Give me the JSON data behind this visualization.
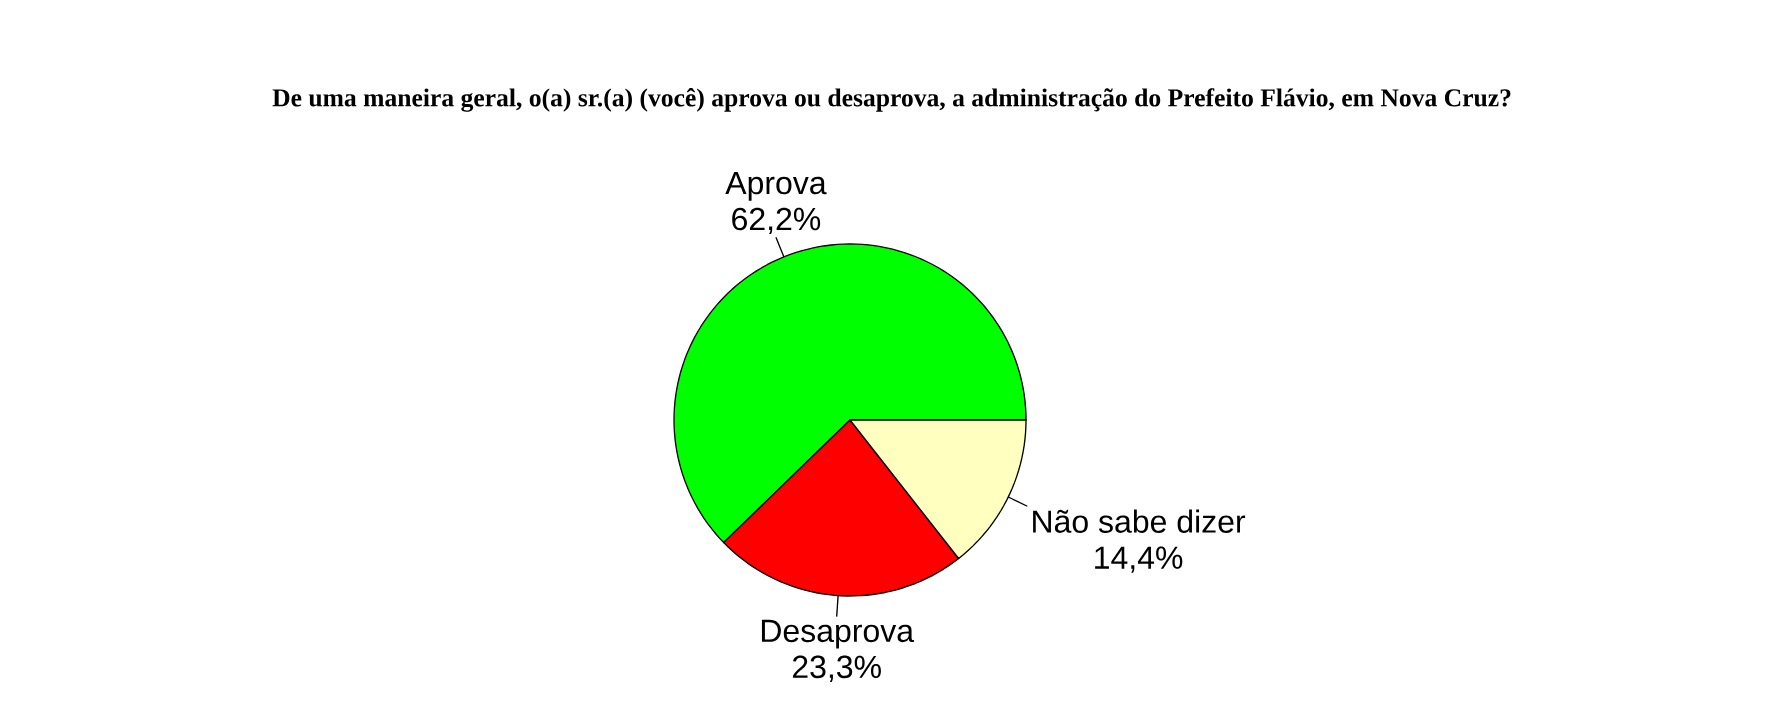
{
  "chart_data": {
    "type": "pie",
    "title": "De uma maneira geral, o(a) sr.(a) (você) aprova ou desaprova, a administração do Prefeito Flávio, em Nova Cruz?",
    "categories": [
      "Aprova",
      "Desaprova",
      "Não sabe dizer"
    ],
    "values": [
      62.2,
      23.3,
      14.4
    ],
    "colors": [
      "#00ff00",
      "#ff0000",
      "#ffffc0"
    ],
    "value_labels": [
      "62,2%",
      "23,3%",
      "14,4%"
    ]
  }
}
